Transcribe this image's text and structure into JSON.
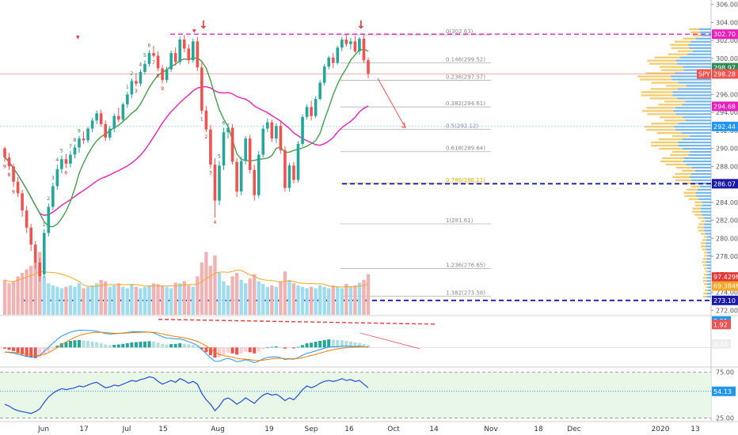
{
  "chart_data": {
    "type": "candlestick",
    "ticker": "SPY",
    "x_labels": [
      "Jun",
      "17",
      "Jul",
      "15",
      "Aug",
      "19",
      "Sep",
      "16",
      "Oct",
      "14",
      "Nov",
      "18",
      "Dec",
      "2020",
      "13"
    ],
    "price_axis": {
      "ticks": [
        "306.00",
        "304.00",
        "302.00",
        "300.00",
        "298.00",
        "296.00",
        "294.00",
        "292.00",
        "290.00",
        "288.00",
        "286.00",
        "284.00",
        "282.00",
        "280.00",
        "278.00",
        "276.00",
        "274.00",
        "272.00"
      ],
      "range": [
        271.5,
        306.5
      ]
    },
    "price_tags": [
      {
        "label": "302.70",
        "value": 302.7,
        "color": "#e91ebc"
      },
      {
        "label": "298.97",
        "value": 298.97,
        "color": "#2e8b57"
      },
      {
        "label": "SPY",
        "value": 298.28,
        "color": "#ef5350"
      },
      {
        "label": "298.28",
        "value": 298.28,
        "color": "#ef5350"
      },
      {
        "label": "294.68",
        "value": 294.68,
        "color": "#e91ebc"
      },
      {
        "label": "292.44",
        "value": 292.44,
        "color": "#2196f3"
      },
      {
        "label": "286.07",
        "value": 286.07,
        "color": "#1a1aa6"
      },
      {
        "label": "97.429M",
        "value": 275.7,
        "color": "#e53935"
      },
      {
        "label": "69.384M",
        "value": 274.7,
        "color": "#f5a623"
      },
      {
        "label": "273.10",
        "value": 273.1,
        "color": "#1a1aa6"
      }
    ],
    "fib_levels": [
      {
        "label": "0(302.63)",
        "value": 302.63
      },
      {
        "label": "0.146(299.52)",
        "value": 299.52
      },
      {
        "label": "0.236(297.57)",
        "value": 297.57
      },
      {
        "label": "0.382(294.61)",
        "value": 294.61
      },
      {
        "label": "0.5(292.12)",
        "value": 292.12
      },
      {
        "label": "0.618(289.64)",
        "value": 289.64
      },
      {
        "label": "0.786(286.11)",
        "value": 286.11
      },
      {
        "label": "1(281.61)",
        "value": 281.61
      },
      {
        "label": "1.236(276.65)",
        "value": 276.65
      },
      {
        "label": "1.382(273.58)",
        "value": 273.58
      }
    ],
    "candles": [
      [
        290,
        290.2,
        288.5,
        289
      ],
      [
        289,
        289.5,
        287.6,
        288
      ],
      [
        288,
        288.3,
        285.7,
        286.3
      ],
      [
        286.3,
        286.8,
        284.6,
        285
      ],
      [
        285,
        285.4,
        282.4,
        283.1
      ],
      [
        283.1,
        283.6,
        280.6,
        281.2
      ],
      [
        281.2,
        281.6,
        278.6,
        279.3
      ],
      [
        279.3,
        279.7,
        276.6,
        277.3
      ],
      [
        277.3,
        277.8,
        275.2,
        275.8
      ],
      [
        276,
        281,
        275.6,
        280.6
      ],
      [
        280.6,
        283.9,
        280.2,
        283.5
      ],
      [
        283.5,
        286.2,
        283.1,
        285.8
      ],
      [
        285.8,
        288.2,
        285.4,
        287.7
      ],
      [
        287.7,
        289.2,
        287.2,
        288.8
      ],
      [
        288.8,
        289.4,
        287.8,
        288.3
      ],
      [
        288.3,
        289.7,
        287.9,
        289.3
      ],
      [
        289.3,
        290.4,
        288.9,
        290.1
      ],
      [
        290.1,
        291.4,
        289.5,
        291.1
      ],
      [
        291.1,
        291.9,
        290.5,
        290.9
      ],
      [
        290.9,
        292.4,
        290.6,
        292.2
      ],
      [
        292.2,
        293.4,
        291.8,
        293.1
      ],
      [
        293.1,
        294.2,
        292.7,
        293.9
      ],
      [
        293.9,
        294.3,
        292.4,
        292.7
      ],
      [
        292.7,
        293.1,
        290.8,
        291.2
      ],
      [
        291.2,
        292.5,
        290.9,
        292.2
      ],
      [
        292.2,
        293.9,
        291.8,
        293.6
      ],
      [
        293.6,
        294.5,
        292.9,
        293.2
      ],
      [
        293.2,
        295.1,
        292.9,
        294.9
      ],
      [
        294.9,
        296.3,
        294.5,
        296
      ],
      [
        296,
        297.8,
        295.6,
        297.5
      ],
      [
        297.5,
        298.4,
        296.9,
        297.2
      ],
      [
        297.2,
        298.8,
        296.9,
        298.5
      ],
      [
        298.5,
        299.8,
        298.2,
        299.4
      ],
      [
        299.4,
        300.9,
        299.1,
        300.6
      ],
      [
        300.6,
        301.4,
        300.1,
        300.3
      ],
      [
        300.3,
        300.8,
        298.6,
        298.9
      ],
      [
        298.9,
        299.3,
        297.2,
        297.6
      ],
      [
        297.6,
        299.1,
        297.3,
        298.8
      ],
      [
        298.8,
        300.9,
        298.5,
        300.6
      ],
      [
        300.6,
        301.2,
        299.2,
        299.6
      ],
      [
        299.6,
        302.4,
        299.3,
        302.1
      ],
      [
        302.1,
        302.6,
        300.7,
        301.1
      ],
      [
        301.1,
        301.6,
        299.4,
        299.8
      ],
      [
        299.8,
        302.2,
        299.5,
        301.9
      ],
      [
        301.9,
        302.4,
        298.6,
        299
      ],
      [
        299,
        299.6,
        293.8,
        294.2
      ],
      [
        294.2,
        294.7,
        291.8,
        292.1
      ],
      [
        292.1,
        292.6,
        287.8,
        288.2
      ],
      [
        288.2,
        288.9,
        282.3,
        284.2
      ],
      [
        284.2,
        288.6,
        283.7,
        288.1
      ],
      [
        288.1,
        292.3,
        287.6,
        291.8
      ],
      [
        291.8,
        292.8,
        291.1,
        292.3
      ],
      [
        292.3,
        292.7,
        288.2,
        288.5
      ],
      [
        288.5,
        288.9,
        284.6,
        285.2
      ],
      [
        285.2,
        289.1,
        284.8,
        288.6
      ],
      [
        288.6,
        291.4,
        288.2,
        291.1
      ],
      [
        291.1,
        291.5,
        287.2,
        287.6
      ],
      [
        287.6,
        288.2,
        284.2,
        284.8
      ],
      [
        284.8,
        289.7,
        284.5,
        289.3
      ],
      [
        289.3,
        292.6,
        289,
        292.2
      ],
      [
        292.2,
        293.3,
        291.8,
        292.9
      ],
      [
        292.9,
        293.2,
        290.7,
        291.1
      ],
      [
        291.1,
        292.8,
        290.6,
        292.5
      ],
      [
        292.5,
        293.1,
        289.4,
        289.8
      ],
      [
        289.8,
        290.2,
        285.2,
        285.6
      ],
      [
        285.6,
        288.4,
        285.2,
        288.1
      ],
      [
        288.1,
        288.5,
        286.1,
        286.5
      ],
      [
        286.5,
        290.8,
        286.2,
        290.5
      ],
      [
        290.5,
        293.8,
        290.2,
        293.5
      ],
      [
        293.5,
        294.9,
        293.2,
        294.6
      ],
      [
        294.6,
        295.3,
        293.1,
        293.6
      ],
      [
        293.6,
        295.8,
        293.4,
        295.5
      ],
      [
        295.5,
        297.6,
        295.3,
        297.3
      ],
      [
        297.3,
        299.4,
        297,
        299.1
      ],
      [
        299.1,
        300.3,
        298.8,
        300.1
      ],
      [
        300.1,
        300.6,
        298.9,
        299.5
      ],
      [
        299.5,
        301.4,
        299.3,
        301.2
      ],
      [
        301.2,
        302.4,
        300.8,
        302.1
      ],
      [
        302.1,
        302.6,
        301.3,
        301.6
      ],
      [
        301.6,
        302.3,
        301,
        301.9
      ],
      [
        301.9,
        302.5,
        300.6,
        300.8
      ],
      [
        300.8,
        302.4,
        300.4,
        302.2
      ],
      [
        302.2,
        302.6,
        299.5,
        299.8
      ],
      [
        299.8,
        300.1,
        297.8,
        298.28
      ]
    ],
    "volume_scale_max": 120,
    "volumes": [
      50,
      45,
      48,
      55,
      60,
      65,
      70,
      75,
      90,
      55,
      45,
      42,
      40,
      38,
      40,
      42,
      40,
      45,
      38,
      40,
      42,
      45,
      50,
      48,
      40,
      42,
      45,
      40,
      38,
      44,
      40,
      38,
      40,
      42,
      45,
      44,
      42,
      40,
      38,
      46,
      45,
      48,
      42,
      40,
      55,
      75,
      90,
      70,
      85,
      60,
      48,
      42,
      55,
      60,
      50,
      45,
      52,
      58,
      48,
      44,
      40,
      42,
      40,
      48,
      62,
      50,
      45,
      42,
      40,
      38,
      40,
      38,
      42,
      40,
      38,
      42,
      40,
      38,
      44,
      40,
      42,
      46,
      50,
      58
    ],
    "macd_histogram": [
      -0.1,
      -0.2,
      -0.3,
      -0.45,
      -0.6,
      -0.75,
      -0.85,
      -0.9,
      -0.85,
      -0.6,
      -0.35,
      -0.1,
      0.15,
      0.35,
      0.45,
      0.55,
      0.6,
      0.62,
      0.58,
      0.55,
      0.5,
      0.45,
      0.35,
      0.25,
      0.2,
      0.22,
      0.25,
      0.3,
      0.35,
      0.42,
      0.45,
      0.48,
      0.5,
      0.52,
      0.5,
      0.4,
      0.3,
      0.25,
      0.28,
      0.3,
      0.35,
      0.32,
      0.25,
      0.2,
      0.1,
      -0.15,
      -0.4,
      -0.65,
      -0.85,
      -0.8,
      -0.6,
      -0.45,
      -0.5,
      -0.6,
      -0.5,
      -0.35,
      -0.4,
      -0.5,
      -0.35,
      -0.15,
      0,
      0.05,
      0.08,
      0.02,
      -0.1,
      -0.05,
      -0.08,
      0.05,
      0.2,
      0.35,
      0.4,
      0.48,
      0.55,
      0.62,
      0.68,
      0.65,
      0.62,
      0.6,
      0.55,
      0.5,
      0.42,
      0.38,
      0.28,
      0.2
    ],
    "macd_axis": {
      "range": [
        -1.5,
        2.6
      ]
    },
    "macd_tags": [
      {
        "label": "2.21",
        "value": 2.21,
        "color": "#2196f3"
      },
      {
        "label": "1.92",
        "value": 1.92,
        "color": "#ef5350"
      },
      {
        "label": "0.30",
        "value": 0.3,
        "color": "#eeeeee"
      }
    ],
    "rsi_axis": {
      "ticks": [
        "75.00",
        "25.00"
      ],
      "range": [
        22,
        79
      ]
    },
    "rsi_tags": [
      {
        "label": "54.13",
        "value": 54.13,
        "color": "#2196f3"
      }
    ],
    "rsi_values": [
      40,
      38,
      35,
      33,
      32,
      31,
      30,
      32,
      35,
      42,
      48,
      52,
      55,
      57,
      56,
      57,
      58,
      60,
      59,
      61,
      63,
      64,
      61,
      58,
      59,
      61,
      60,
      62,
      64,
      66,
      65,
      67,
      68,
      70,
      69,
      65,
      62,
      64,
      66,
      64,
      68,
      66,
      63,
      65,
      62,
      52,
      45,
      40,
      33,
      38,
      45,
      47,
      44,
      40,
      43,
      47,
      44,
      41,
      46,
      50,
      52,
      50,
      51,
      48,
      44,
      47,
      45,
      50,
      56,
      60,
      58,
      60,
      63,
      65,
      66,
      65,
      66,
      68,
      66,
      67,
      65,
      66,
      62,
      58
    ]
  },
  "event_markers": {
    "arrows": [
      "↓",
      "↓"
    ],
    "small_markers": [
      "▼",
      "▼"
    ]
  },
  "candle_counts": [
    "9",
    "8",
    "9",
    "1",
    "2",
    "3",
    "4",
    "5",
    "6",
    "7",
    "8",
    "9",
    "1",
    "2",
    "3",
    "4",
    "5",
    "6",
    "7",
    "8",
    "9",
    "1",
    "2",
    "3",
    "4",
    "5",
    "6"
  ],
  "colors": {
    "up": "#26a69a",
    "down": "#ef5350",
    "ma_fast": "#43a047",
    "ma_slow": "#e91ebc",
    "fib": "#b0b0b0",
    "fib_786": "#e0b000",
    "hline_blue": "#1a1aa6",
    "hline_magenta": "#e91ebc",
    "rsi_line": "#1e4fd8",
    "rsi_band": "#e8f7e8",
    "vol_up": "#9fdcf0",
    "vol_down": "#f0b3b3"
  }
}
